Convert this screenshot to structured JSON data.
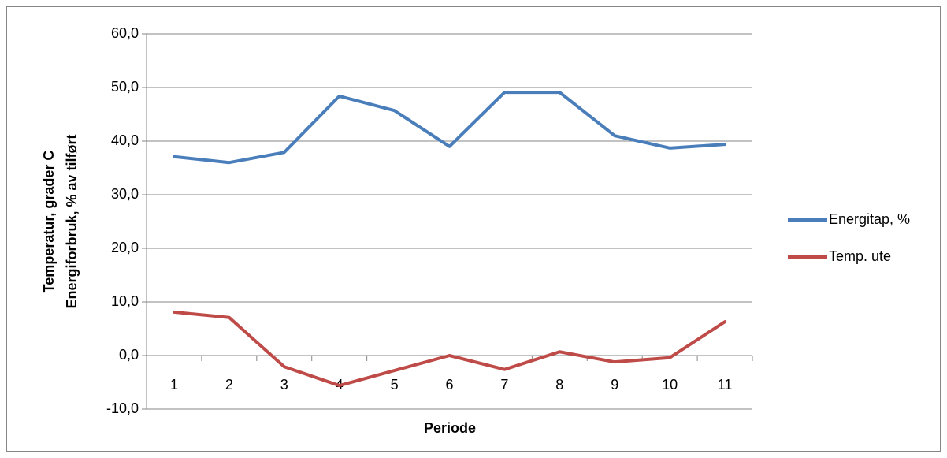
{
  "chart_data": {
    "type": "line",
    "y_title_lines": [
      "Temperatur, grader C",
      "Energiforbruk, % av tilført"
    ],
    "x_title": "Periode",
    "categories": [
      "1",
      "2",
      "3",
      "4",
      "5",
      "6",
      "7",
      "8",
      "9",
      "10",
      "11"
    ],
    "series": [
      {
        "name": "Energitap, %",
        "color": "#4a7ebb",
        "values": [
          37.1,
          36.0,
          37.9,
          48.4,
          45.7,
          39.0,
          49.1,
          49.1,
          41.0,
          38.7,
          39.4
        ]
      },
      {
        "name": "Temp. ute",
        "color": "#be4b48",
        "values": [
          8.1,
          7.1,
          -2.1,
          -5.6,
          -2.8,
          0.0,
          -2.6,
          0.7,
          -1.2,
          -0.4,
          6.3
        ]
      }
    ],
    "ylim": [
      -10,
      60
    ],
    "yticks": [
      {
        "value": -10,
        "label": "-10,0"
      },
      {
        "value": 0,
        "label": "0,0"
      },
      {
        "value": 10,
        "label": "10,0"
      },
      {
        "value": 20,
        "label": "20,0"
      },
      {
        "value": 30,
        "label": "30,0"
      },
      {
        "value": 40,
        "label": "40,0"
      },
      {
        "value": 50,
        "label": "50,0"
      },
      {
        "value": 60,
        "label": "60,0"
      }
    ],
    "grid": true,
    "legend": "right"
  }
}
